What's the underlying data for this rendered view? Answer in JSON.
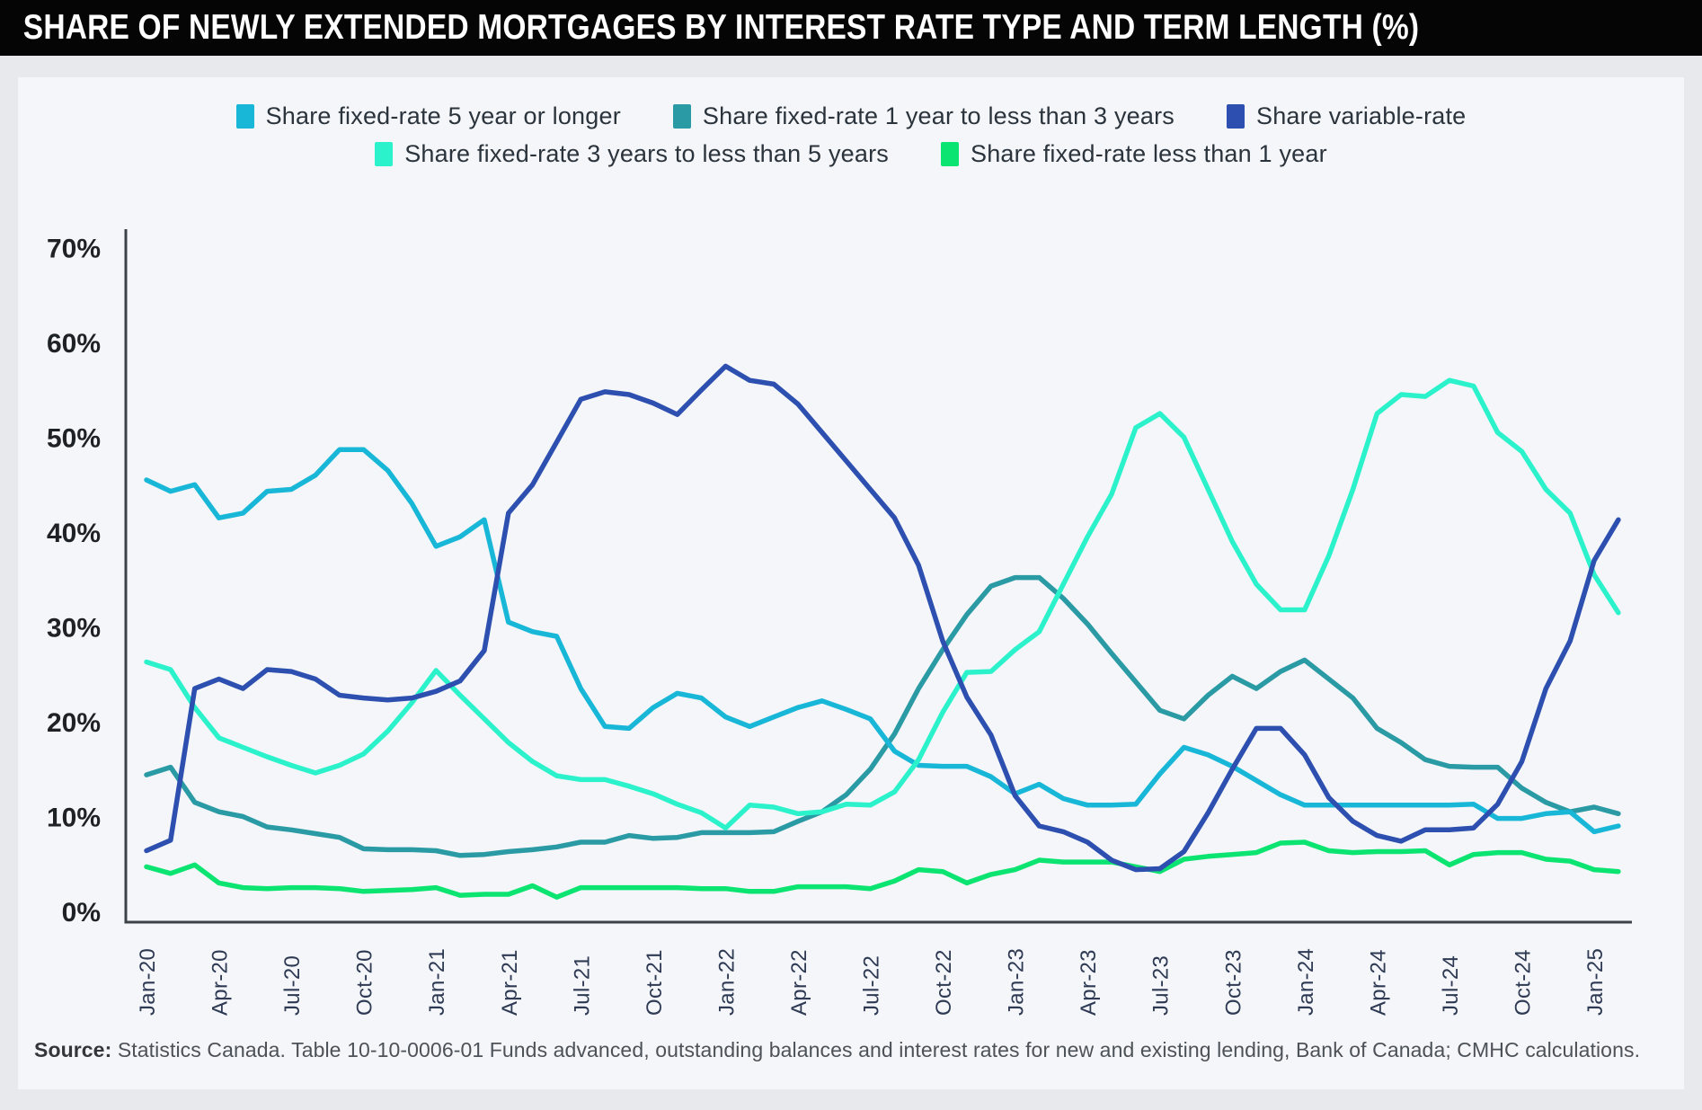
{
  "header": {
    "title": "SHARE OF NEWLY EXTENDED MORTGAGES BY INTEREST RATE TYPE AND TERM LENGTH (%)"
  },
  "legend": {
    "items": [
      {
        "label": "Share fixed-rate 5 year or longer",
        "color": "#18b7d8"
      },
      {
        "label": "Share fixed-rate 1 year to less than 3 years",
        "color": "#2a9aa4"
      },
      {
        "label": "Share variable-rate",
        "color": "#2c4fb0"
      },
      {
        "label": "Share fixed-rate 3 years to less than 5 years",
        "color": "#2cf2cc"
      },
      {
        "label": "Share fixed-rate less than 1 year",
        "color": "#0be470"
      }
    ]
  },
  "chart_data": {
    "type": "line",
    "title": "SHARE OF NEWLY EXTENDED MORTGAGES BY INTEREST RATE TYPE AND TERM LENGTH (%)",
    "x": [
      "Jan-20",
      "Feb-20",
      "Mar-20",
      "Apr-20",
      "May-20",
      "Jun-20",
      "Jul-20",
      "Aug-20",
      "Sep-20",
      "Oct-20",
      "Nov-20",
      "Dec-20",
      "Jan-21",
      "Feb-21",
      "Mar-21",
      "Apr-21",
      "May-21",
      "Jun-21",
      "Jul-21",
      "Aug-21",
      "Sep-21",
      "Oct-21",
      "Nov-21",
      "Dec-21",
      "Jan-22",
      "Feb-22",
      "Mar-22",
      "Apr-22",
      "May-22",
      "Jun-22",
      "Jul-22",
      "Aug-22",
      "Sep-22",
      "Oct-22",
      "Nov-22",
      "Dec-22",
      "Jan-23",
      "Feb-23",
      "Mar-23",
      "Apr-23",
      "May-23",
      "Jun-23",
      "Jul-23",
      "Aug-23",
      "Sep-23",
      "Oct-23",
      "Nov-23",
      "Dec-23",
      "Jan-24",
      "Feb-24",
      "Mar-24",
      "Apr-24",
      "May-24",
      "Jun-24",
      "Jul-24",
      "Aug-24",
      "Sep-24",
      "Oct-24",
      "Nov-24",
      "Dec-24",
      "Jan-25",
      "Feb-25"
    ],
    "x_tick_labels": [
      "Jan-20",
      "Apr-20",
      "Jul-20",
      "Oct-20",
      "Jan-21",
      "Apr-21",
      "Jul-21",
      "Oct-21",
      "Jan-22",
      "Apr-22",
      "Jul-22",
      "Oct-22",
      "Jan-23",
      "Apr-23",
      "Jul-23",
      "Oct-23",
      "Jan-24",
      "Apr-24",
      "Jul-24",
      "Oct-24",
      "Jan-25"
    ],
    "ylim": [
      0,
      70
    ],
    "y_ticks": [
      0,
      10,
      20,
      30,
      40,
      50,
      60,
      70
    ],
    "y_tick_suffix": "%",
    "grid": false,
    "legend_position": "top",
    "series": [
      {
        "name": "Share fixed-rate 5 year or longer",
        "color": "#18b7d8",
        "values": [
          45.5,
          44.3,
          45,
          41.5,
          42,
          44.3,
          44.5,
          46,
          48.7,
          48.7,
          46.5,
          43,
          38.5,
          39.5,
          41.3,
          30.5,
          29.5,
          29,
          23.5,
          19.5,
          19.3,
          21.5,
          23,
          22.5,
          20.5,
          19.5,
          20.5,
          21.5,
          22.2,
          21.3,
          20.3,
          16.9,
          15.4,
          15.3,
          15.3,
          14.2,
          12.4,
          13.4,
          11.9,
          11.2,
          11.2,
          11.3,
          14.5,
          17.3,
          16.5,
          15.3,
          13.8,
          12.3,
          11.2,
          11.2,
          11.2,
          11.2,
          11.2,
          11.2,
          11.2,
          11.3,
          9.8,
          9.8,
          10.3,
          10.5,
          8.4,
          9
        ]
      },
      {
        "name": "Share fixed-rate 1 year to less than 3 years",
        "color": "#2a9aa4",
        "values": [
          14.4,
          15.2,
          11.5,
          10.5,
          10,
          8.9,
          8.6,
          8.2,
          7.8,
          6.6,
          6.5,
          6.5,
          6.4,
          5.9,
          6,
          6.3,
          6.5,
          6.8,
          7.3,
          7.3,
          8,
          7.7,
          7.8,
          8.3,
          8.3,
          8.3,
          8.4,
          9.5,
          10.5,
          12.3,
          15,
          18.7,
          23.5,
          27.6,
          31.3,
          34.3,
          35.2,
          35.2,
          33,
          30.3,
          27.2,
          24.2,
          21.2,
          20.3,
          22.8,
          24.8,
          23.5,
          25.3,
          26.5,
          24.5,
          22.5,
          19.3,
          17.8,
          16,
          15.3,
          15.2,
          15.2,
          13,
          11.5,
          10.5,
          11,
          10.3
        ]
      },
      {
        "name": "Share variable-rate",
        "color": "#2c4fb0",
        "values": [
          6.4,
          7.5,
          23.5,
          24.5,
          23.5,
          25.5,
          25.3,
          24.5,
          22.8,
          22.5,
          22.3,
          22.5,
          23.2,
          24.3,
          27.5,
          42,
          45,
          49.5,
          54,
          54.8,
          54.5,
          53.6,
          52.4,
          55,
          57.5,
          56,
          55.6,
          53.5,
          50.5,
          47.5,
          44.5,
          41.5,
          36.5,
          28.5,
          22.6,
          18.6,
          12.2,
          9,
          8.4,
          7.3,
          5.4,
          4.4,
          4.5,
          6.3,
          10.4,
          15,
          19.3,
          19.3,
          16.5,
          12,
          9.5,
          8,
          7.4,
          8.6,
          8.6,
          8.8,
          11.3,
          15.8,
          23.5,
          28.5,
          37,
          41.3
        ]
      },
      {
        "name": "Share fixed-rate 3 years to less than 5 years",
        "color": "#2cf2cc",
        "values": [
          26.3,
          25.5,
          21.5,
          18.3,
          17.3,
          16.3,
          15.4,
          14.6,
          15.4,
          16.6,
          19,
          22,
          25.4,
          22.8,
          20.3,
          17.8,
          15.8,
          14.3,
          13.9,
          13.9,
          13.2,
          12.4,
          11.3,
          10.4,
          8.8,
          11.2,
          11,
          10.3,
          10.5,
          11.3,
          11.2,
          12.6,
          16,
          21,
          25.2,
          25.3,
          27.6,
          29.5,
          34.5,
          39.5,
          44,
          51,
          52.5,
          50,
          44.5,
          39,
          34.5,
          31.8,
          31.8,
          37.5,
          44.5,
          52.5,
          54.5,
          54.3,
          56,
          55.4,
          50.5,
          48.5,
          44.5,
          42,
          35.5,
          31.5
        ]
      },
      {
        "name": "Share fixed-rate less than 1 year",
        "color": "#0be470",
        "values": [
          4.7,
          4,
          4.9,
          3,
          2.5,
          2.4,
          2.5,
          2.5,
          2.4,
          2.1,
          2.2,
          2.3,
          2.5,
          1.7,
          1.8,
          1.8,
          2.7,
          1.5,
          2.5,
          2.5,
          2.5,
          2.5,
          2.5,
          2.4,
          2.4,
          2.1,
          2.1,
          2.6,
          2.6,
          2.6,
          2.4,
          3.2,
          4.4,
          4.2,
          3,
          3.9,
          4.4,
          5.4,
          5.2,
          5.2,
          5.2,
          4.7,
          4.2,
          5.5,
          5.8,
          6,
          6.2,
          7.2,
          7.3,
          6.4,
          6.2,
          6.3,
          6.3,
          6.4,
          4.9,
          6,
          6.2,
          6.2,
          5.5,
          5.3,
          4.4,
          4.2
        ]
      }
    ]
  },
  "source": {
    "label": "Source:",
    "text": "Statistics Canada. Table 10-10-0006-01 Funds advanced, outstanding balances and interest rates for new and existing lending, Bank of Canada; CMHC calculations."
  }
}
